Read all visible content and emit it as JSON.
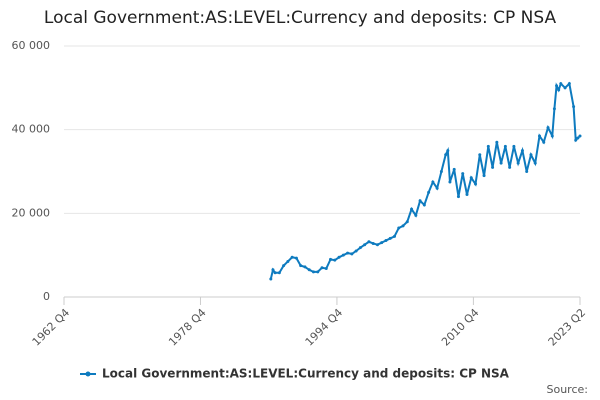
{
  "chart_data": {
    "type": "line",
    "title": "Local Government:AS:LEVEL:Currency and deposits: CP NSA",
    "source": "Source:",
    "xlim": [
      1962.75,
      2023.25
    ],
    "xticks": [
      {
        "value": 1962.75,
        "label": "1962 Q4"
      },
      {
        "value": 1978.75,
        "label": "1978 Q4"
      },
      {
        "value": 1994.75,
        "label": "1994 Q4"
      },
      {
        "value": 2010.75,
        "label": "2010 Q4"
      },
      {
        "value": 2023.25,
        "label": "2023 Q2"
      }
    ],
    "ylim": [
      0,
      60000
    ],
    "yticks": [
      {
        "value": 0,
        "label": "0"
      },
      {
        "value": 20000,
        "label": "20 000"
      },
      {
        "value": 40000,
        "label": "40 000"
      },
      {
        "value": 60000,
        "label": "60 000"
      }
    ],
    "grid": true,
    "series": [
      {
        "name": "Local Government:AS:LEVEL:Currency and deposits: CP NSA",
        "color": "#0e7bbf",
        "x": [
          1987.0,
          1987.25,
          1987.5,
          1988.0,
          1988.5,
          1989.0,
          1989.5,
          1990.0,
          1990.5,
          1991.0,
          1991.5,
          1992.0,
          1992.5,
          1993.0,
          1993.5,
          1994.0,
          1994.5,
          1995.0,
          1995.5,
          1996.0,
          1996.5,
          1997.0,
          1997.5,
          1998.0,
          1998.5,
          1999.0,
          1999.5,
          2000.0,
          2000.5,
          2001.0,
          2001.5,
          2002.0,
          2002.5,
          2003.0,
          2003.5,
          2004.0,
          2004.5,
          2005.0,
          2005.5,
          2006.0,
          2006.5,
          2007.0,
          2007.5,
          2007.75,
          2008.0,
          2008.5,
          2009.0,
          2009.5,
          2010.0,
          2010.5,
          2011.0,
          2011.5,
          2012.0,
          2012.5,
          2013.0,
          2013.5,
          2014.0,
          2014.5,
          2015.0,
          2015.5,
          2016.0,
          2016.5,
          2017.0,
          2017.5,
          2018.0,
          2018.5,
          2019.0,
          2019.5,
          2020.0,
          2020.25,
          2020.5,
          2020.75,
          2021.0,
          2021.5,
          2022.0,
          2022.5,
          2022.75,
          2023.0,
          2023.25
        ],
        "values": [
          4300,
          6500,
          5800,
          5800,
          7500,
          8500,
          9500,
          9300,
          7500,
          7200,
          6500,
          6000,
          6000,
          7000,
          6800,
          9000,
          8800,
          9500,
          10000,
          10500,
          10300,
          11000,
          11800,
          12500,
          13200,
          12800,
          12500,
          13000,
          13500,
          14000,
          14500,
          16500,
          17000,
          18000,
          21000,
          19500,
          23000,
          22000,
          25000,
          27500,
          26000,
          30000,
          34000,
          35000,
          27500,
          30500,
          24000,
          29500,
          24500,
          28500,
          27000,
          34000,
          29000,
          36000,
          31000,
          37000,
          32000,
          36000,
          31000,
          36000,
          32000,
          35000,
          30000,
          34000,
          32000,
          38500,
          37000,
          40500,
          38500,
          45000,
          50500,
          49500,
          51000,
          50000,
          51000,
          45500,
          37500,
          38000,
          38500
        ]
      }
    ]
  }
}
